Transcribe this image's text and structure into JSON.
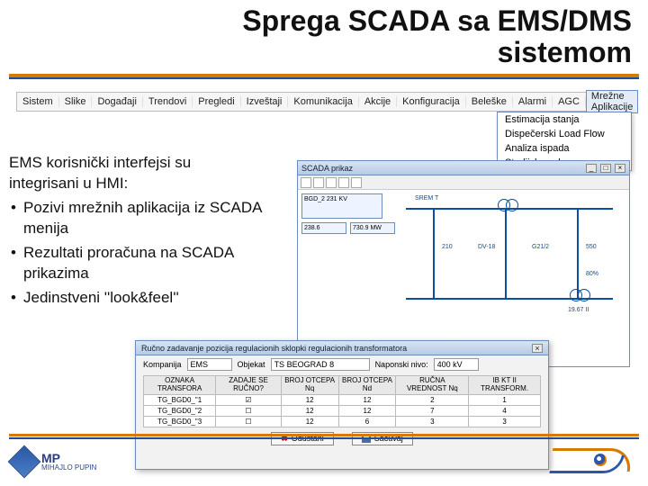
{
  "title": "Sprega SCADA sa EMS/DMS sistemom",
  "colors": {
    "accent_orange": "#d97a00",
    "accent_blue": "#1b50a0",
    "win_blue": "#6d8dc0"
  },
  "menubar": {
    "items": [
      "Sistem",
      "Slike",
      "Događaji",
      "Trendovi",
      "Pregledi",
      "Izveštaji",
      "Komunikacija",
      "Akcije",
      "Konfiguracija",
      "Beleške",
      "Alarmi",
      "AGC",
      "Mrežne Aplikacije"
    ],
    "active_index": 12,
    "dropdown": [
      "Estimacija stanja",
      "Dispečerski Load Flow",
      "Analiza ispada",
      "Studijska sekvenca"
    ]
  },
  "body": {
    "lead1": "EMS korisnički interfejsi su",
    "lead2": "integrisani u HMI:",
    "bullets": [
      "Pozivi mrežnih aplikacija iz SCADA menija",
      "Rezultati proračuna na SCADA prikazima",
      "Jedinstveni ''look&feel''"
    ]
  },
  "scada": {
    "window_title": "SCADA prikaz",
    "panel_title": "BGD_2 231 KV",
    "readouts": [
      "238.6",
      "730.9 MW"
    ],
    "nodes": [
      "SREM T",
      "210",
      "DV-18",
      "G21/2",
      "550",
      "80%",
      "19.67 II"
    ]
  },
  "dialog": {
    "title": "Ručno zadavanje pozicija regulacionih sklopki regulacionih transformatora",
    "fields": {
      "kompanija_label": "Kompanija",
      "kompanija_value": "EMS",
      "objekat_label": "Objekat",
      "objekat_value": "TS BEOGRAD 8",
      "napon_label": "Naponski nivo:",
      "napon_value": "400 kV"
    },
    "columns": [
      "OZNAKA TRANSFORA",
      "ZADAJE SE RUČNO?",
      "BROJ OTCEPA Nq",
      "BROJ OTCEPA Nd",
      "RUČNA VREDNOST Nq",
      "IB KT II TRANSFORM."
    ],
    "rows": [
      {
        "name": "TG_BGD0_\"1",
        "chk": true,
        "v": [
          12,
          12,
          2,
          1
        ]
      },
      {
        "name": "TG_BGD0_\"2",
        "chk": false,
        "v": [
          12,
          12,
          7,
          4
        ]
      },
      {
        "name": "TG_BGD0_\"3",
        "chk": false,
        "v": [
          12,
          6,
          3,
          3
        ]
      }
    ],
    "btn_cancel": "Odustani",
    "btn_save": "Sačuvaj"
  },
  "logos": {
    "mp_big": "MP",
    "mp_small": "MIHAJLO PUPIN"
  }
}
